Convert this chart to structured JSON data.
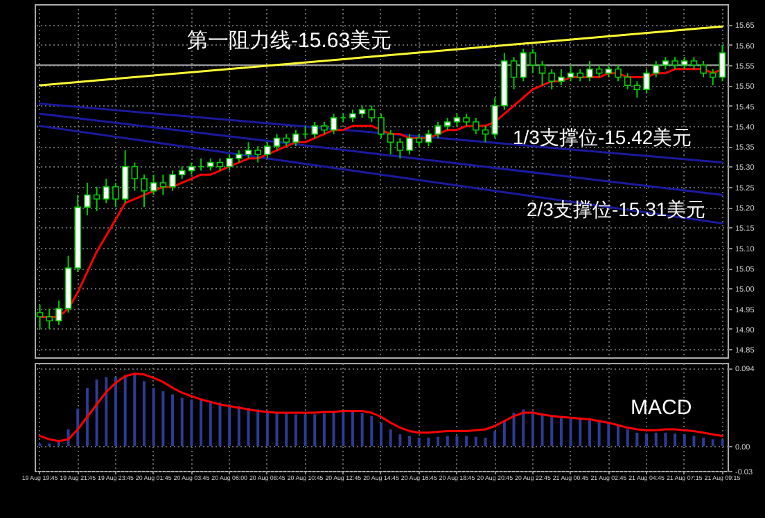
{
  "chart_data": [
    {
      "type": "candlestick",
      "color": "#00cc00",
      "categories": [
        "19 Aug 19:45",
        null,
        null,
        null,
        "19 Aug 21:45",
        null,
        null,
        null,
        "19 Aug 23:45",
        null,
        null,
        null,
        "20 Aug 01:45",
        null,
        null,
        null,
        "20 Aug 03:45",
        null,
        null,
        null,
        "20 Aug 06:00",
        null,
        null,
        null,
        "20 Aug 08:45",
        null,
        null,
        null,
        "20 Aug 10:45",
        null,
        null,
        null,
        "20 Aug 12:45",
        null,
        null,
        null,
        "20 Aug 14:45",
        null,
        null,
        null,
        "20 Aug 16:45",
        null,
        null,
        null,
        "20 Aug 18:45",
        null,
        null,
        null,
        "20 Aug 20:45",
        null,
        null,
        null,
        "20 Aug 22:45",
        null,
        null,
        null,
        "21 Aug 00:45",
        null,
        null,
        null,
        "21 Aug 02:45",
        null,
        null,
        null,
        "21 Aug 04:45",
        null,
        null,
        null,
        "21 Aug 07:15",
        null,
        null,
        null,
        "21 Aug 09:15"
      ],
      "ohlc": [
        [
          14.94,
          14.96,
          14.9,
          14.93
        ],
        [
          14.93,
          14.95,
          14.9,
          14.92
        ],
        [
          14.92,
          14.97,
          14.91,
          14.95
        ],
        [
          14.95,
          15.08,
          14.94,
          15.05
        ],
        [
          15.05,
          15.23,
          15.04,
          15.2
        ],
        [
          15.2,
          15.26,
          15.18,
          15.23
        ],
        [
          15.23,
          15.25,
          15.19,
          15.22
        ],
        [
          15.22,
          15.27,
          15.21,
          15.25
        ],
        [
          15.25,
          15.26,
          15.2,
          15.22
        ],
        [
          15.22,
          15.34,
          15.21,
          15.3
        ],
        [
          15.3,
          15.31,
          15.24,
          15.27
        ],
        [
          15.27,
          15.28,
          15.2,
          15.24
        ],
        [
          15.24,
          15.28,
          15.23,
          15.26
        ],
        [
          15.26,
          15.28,
          15.23,
          15.25
        ],
        [
          15.25,
          15.29,
          15.24,
          15.28
        ],
        [
          15.28,
          15.3,
          15.27,
          15.29
        ],
        [
          15.29,
          15.31,
          15.28,
          15.3
        ],
        [
          15.3,
          15.32,
          15.29,
          15.3
        ],
        [
          15.3,
          15.32,
          15.29,
          15.31
        ],
        [
          15.31,
          15.32,
          15.29,
          15.3
        ],
        [
          15.3,
          15.33,
          15.29,
          15.32
        ],
        [
          15.32,
          15.34,
          15.31,
          15.33
        ],
        [
          15.33,
          15.36,
          15.32,
          15.34
        ],
        [
          15.34,
          15.35,
          15.31,
          15.33
        ],
        [
          15.33,
          15.36,
          15.32,
          15.35
        ],
        [
          15.35,
          15.38,
          15.34,
          15.37
        ],
        [
          15.37,
          15.38,
          15.35,
          15.36
        ],
        [
          15.36,
          15.39,
          15.35,
          15.38
        ],
        [
          15.38,
          15.4,
          15.37,
          15.38
        ],
        [
          15.38,
          15.41,
          15.37,
          15.4
        ],
        [
          15.4,
          15.41,
          15.38,
          15.39
        ],
        [
          15.39,
          15.43,
          15.38,
          15.42
        ],
        [
          15.42,
          15.43,
          15.41,
          15.42
        ],
        [
          15.42,
          15.44,
          15.41,
          15.43
        ],
        [
          15.43,
          15.45,
          15.42,
          15.44
        ],
        [
          15.44,
          15.45,
          15.41,
          15.42
        ],
        [
          15.42,
          15.43,
          15.37,
          15.38
        ],
        [
          15.38,
          15.39,
          15.33,
          15.36
        ],
        [
          15.36,
          15.37,
          15.32,
          15.34
        ],
        [
          15.34,
          15.38,
          15.33,
          15.37
        ],
        [
          15.37,
          15.38,
          15.35,
          15.36
        ],
        [
          15.36,
          15.39,
          15.35,
          15.38
        ],
        [
          15.38,
          15.41,
          15.37,
          15.4
        ],
        [
          15.4,
          15.42,
          15.39,
          15.41
        ],
        [
          15.41,
          15.43,
          15.4,
          15.42
        ],
        [
          15.42,
          15.43,
          15.4,
          15.41
        ],
        [
          15.41,
          15.42,
          15.38,
          15.39
        ],
        [
          15.39,
          15.4,
          15.36,
          15.38
        ],
        [
          15.38,
          15.47,
          15.37,
          15.45
        ],
        [
          15.45,
          15.58,
          15.44,
          15.56
        ],
        [
          15.56,
          15.57,
          15.49,
          15.52
        ],
        [
          15.52,
          15.59,
          15.51,
          15.58
        ],
        [
          15.58,
          15.59,
          15.53,
          15.55
        ],
        [
          15.55,
          15.56,
          15.5,
          15.53
        ],
        [
          15.53,
          15.54,
          15.49,
          15.51
        ],
        [
          15.51,
          15.54,
          15.5,
          15.52
        ],
        [
          15.52,
          15.55,
          15.51,
          15.53
        ],
        [
          15.53,
          15.54,
          15.51,
          15.52
        ],
        [
          15.52,
          15.56,
          15.51,
          15.54
        ],
        [
          15.54,
          15.55,
          15.52,
          15.53
        ],
        [
          15.53,
          15.55,
          15.52,
          15.54
        ],
        [
          15.54,
          15.55,
          15.51,
          15.52
        ],
        [
          15.52,
          15.53,
          15.49,
          15.5
        ],
        [
          15.5,
          15.51,
          15.47,
          15.49
        ],
        [
          15.49,
          15.54,
          15.48,
          15.53
        ],
        [
          15.53,
          15.56,
          15.52,
          15.55
        ],
        [
          15.55,
          15.57,
          15.54,
          15.56
        ],
        [
          15.56,
          15.57,
          15.54,
          15.55
        ],
        [
          15.55,
          15.57,
          15.54,
          15.56
        ],
        [
          15.56,
          15.57,
          15.54,
          15.55
        ],
        [
          15.55,
          15.56,
          15.52,
          15.53
        ],
        [
          15.53,
          15.54,
          15.5,
          15.52
        ],
        [
          15.52,
          15.6,
          15.51,
          15.58
        ]
      ],
      "series": [
        {
          "type": "line",
          "color": "#ffff33",
          "x": [
            "19 Aug 19:45",
            "21 Aug 09:15"
          ],
          "values": [
            15.5,
            15.645
          ]
        },
        {
          "type": "line",
          "color": "#1a1aa0",
          "x": [
            "19 Aug 19:45",
            "21 Aug 09:15"
          ],
          "values": [
            15.455,
            15.31
          ]
        },
        {
          "type": "line",
          "color": "#1a1aa0",
          "x": [
            "19 Aug 19:45",
            "21 Aug 09:15"
          ],
          "values": [
            15.43,
            15.23
          ]
        },
        {
          "type": "line",
          "color": "#1a1aa0",
          "x": [
            "19 Aug 19:45",
            "21 Aug 09:15"
          ],
          "values": [
            15.4,
            15.16
          ]
        },
        {
          "type": "line",
          "color": "#ff0000",
          "values": [
            14.93,
            14.93,
            14.93,
            14.95,
            14.99,
            15.04,
            15.09,
            15.13,
            15.17,
            15.21,
            15.22,
            15.23,
            15.24,
            15.25,
            15.25,
            15.26,
            15.27,
            15.28,
            15.28,
            15.29,
            15.3,
            15.31,
            15.32,
            15.32,
            15.33,
            15.34,
            15.35,
            15.36,
            15.36,
            15.37,
            15.38,
            15.39,
            15.39,
            15.4,
            15.4,
            15.4,
            15.39,
            15.38,
            15.38,
            15.37,
            15.37,
            15.37,
            15.38,
            15.39,
            15.39,
            15.4,
            15.4,
            15.4,
            15.41,
            15.43,
            15.45,
            15.47,
            15.49,
            15.5,
            15.51,
            15.51,
            15.52,
            15.52,
            15.52,
            15.52,
            15.53,
            15.53,
            15.52,
            15.52,
            15.52,
            15.53,
            15.53,
            15.54,
            15.54,
            15.54,
            15.54,
            15.53,
            15.54
          ]
        }
      ],
      "ref_lines": [
        {
          "axis": "y",
          "value": 15.55,
          "color": "#999999"
        }
      ],
      "ylim": [
        14.83,
        15.7
      ],
      "yticks": [
        {
          "value": 14.85,
          "label": "14.85"
        },
        {
          "value": 14.9,
          "label": "14.90"
        },
        {
          "value": 14.95,
          "label": "14.95"
        },
        {
          "value": 15.0,
          "label": "15.00"
        },
        {
          "value": 15.05,
          "label": "15.05"
        },
        {
          "value": 15.1,
          "label": "15.10"
        },
        {
          "value": 15.15,
          "label": "15.15"
        },
        {
          "value": 15.2,
          "label": "15.20"
        },
        {
          "value": 15.25,
          "label": "15.25"
        },
        {
          "value": 15.3,
          "label": "15.30"
        },
        {
          "value": 15.35,
          "label": "15.35"
        },
        {
          "value": 15.4,
          "label": "15.40"
        },
        {
          "value": 15.45,
          "label": "15.45"
        },
        {
          "value": 15.5,
          "label": "15.50"
        },
        {
          "value": 15.55,
          "label": "15.55"
        },
        {
          "value": 15.6,
          "label": "15.60"
        },
        {
          "value": 15.65,
          "label": "15.65"
        }
      ],
      "grid": true,
      "tick_labels": "y",
      "annotations": [
        "第一阻力线-15.63美元",
        "1/3支撑位-15.42美元",
        "2/3支撑位-15.31美元"
      ]
    },
    {
      "type": "bar",
      "categories": [
        "19 Aug 19:45",
        null,
        null,
        null,
        "19 Aug 21:45",
        null,
        null,
        null,
        "19 Aug 23:45",
        null,
        null,
        null,
        "20 Aug 01:45",
        null,
        null,
        null,
        "20 Aug 03:45",
        null,
        null,
        null,
        "20 Aug 06:00",
        null,
        null,
        null,
        "20 Aug 08:45",
        null,
        null,
        null,
        "20 Aug 10:45",
        null,
        null,
        null,
        "20 Aug 12:45",
        null,
        null,
        null,
        "20 Aug 14:45",
        null,
        null,
        null,
        "20 Aug 16:45",
        null,
        null,
        null,
        "20 Aug 18:45",
        null,
        null,
        null,
        "20 Aug 20:45",
        null,
        null,
        null,
        "20 Aug 22:45",
        null,
        null,
        null,
        "21 Aug 00:45",
        null,
        null,
        null,
        "21 Aug 02:45",
        null,
        null,
        null,
        "21 Aug 04:45",
        null,
        null,
        null,
        "21 Aug 07:15",
        null,
        null,
        null,
        "21 Aug 09:15"
      ],
      "series": [
        {
          "color": "#2c3c96",
          "values": [
            0.003,
            0.003,
            0.005,
            0.02,
            0.045,
            0.07,
            0.08,
            0.083,
            0.083,
            0.085,
            0.088,
            0.078,
            0.07,
            0.066,
            0.062,
            0.058,
            0.056,
            0.055,
            0.054,
            0.052,
            0.05,
            0.048,
            0.046,
            0.044,
            0.042,
            0.04,
            0.039,
            0.038,
            0.038,
            0.038,
            0.039,
            0.04,
            0.041,
            0.041,
            0.04,
            0.036,
            0.028,
            0.02,
            0.014,
            0.012,
            0.01,
            0.01,
            0.011,
            0.012,
            0.012,
            0.012,
            0.011,
            0.01,
            0.018,
            0.03,
            0.04,
            0.044,
            0.042,
            0.038,
            0.036,
            0.034,
            0.033,
            0.032,
            0.031,
            0.03,
            0.028,
            0.025,
            0.02,
            0.016,
            0.015,
            0.016,
            0.016,
            0.015,
            0.014,
            0.012,
            0.01,
            0.008,
            0.008
          ]
        },
        {
          "type": "line",
          "color": "#ff0000",
          "values": [
            0.012,
            0.008,
            0.006,
            0.008,
            0.02,
            0.035,
            0.05,
            0.065,
            0.076,
            0.084,
            0.087,
            0.086,
            0.082,
            0.077,
            0.07,
            0.064,
            0.06,
            0.056,
            0.053,
            0.05,
            0.048,
            0.046,
            0.044,
            0.042,
            0.041,
            0.04,
            0.04,
            0.04,
            0.04,
            0.04,
            0.041,
            0.041,
            0.042,
            0.042,
            0.042,
            0.04,
            0.035,
            0.028,
            0.022,
            0.018,
            0.016,
            0.016,
            0.017,
            0.018,
            0.018,
            0.018,
            0.019,
            0.02,
            0.024,
            0.03,
            0.036,
            0.04,
            0.04,
            0.038,
            0.036,
            0.035,
            0.034,
            0.033,
            0.032,
            0.03,
            0.028,
            0.025,
            0.022,
            0.02,
            0.019,
            0.019,
            0.02,
            0.02,
            0.019,
            0.018,
            0.016,
            0.014,
            0.012
          ]
        }
      ],
      "ylim": [
        -0.03,
        0.1
      ],
      "yticks": [
        0.094,
        {
          "value": 0,
          "label": "0.00"
        },
        {
          "value": -0.03,
          "label": "-0.03"
        }
      ],
      "grid": true,
      "annotations": [
        "MACD"
      ]
    }
  ]
}
